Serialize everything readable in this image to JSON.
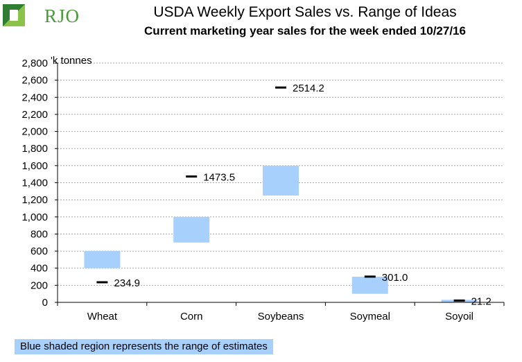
{
  "brand": {
    "logo_text": "RJO"
  },
  "chart_data": {
    "type": "range",
    "title": "USDA Weekly Export Sales vs. Range of Ideas",
    "subtitle": "Current marketing year sales for the week ended 10/27/16",
    "ylabel": "'k tonnes",
    "ylim": [
      0,
      2800
    ],
    "yticks": [
      "0",
      "200",
      "400",
      "600",
      "800",
      "1,000",
      "1,200",
      "1,400",
      "1,600",
      "1,800",
      "2,000",
      "2,200",
      "2,400",
      "2,600",
      "2,800"
    ],
    "grid": true,
    "categories": [
      "Wheat",
      "Corn",
      "Soybeans",
      "Soymeal",
      "Soyoil"
    ],
    "range_low": [
      400,
      700,
      1250,
      100,
      5
    ],
    "range_high": [
      600,
      1000,
      1600,
      300,
      30
    ],
    "actual": [
      234.9,
      1473.5,
      2514.2,
      301.0,
      21.2
    ],
    "actual_labels": [
      "234.9",
      "1473.5",
      "2514.2",
      "301.0",
      "21.2"
    ],
    "colors": {
      "range": "#a8d0fd",
      "actual": "#000000",
      "grid": "#a6a6a6"
    }
  },
  "footnote": "Blue shaded region represents the range of estimates"
}
